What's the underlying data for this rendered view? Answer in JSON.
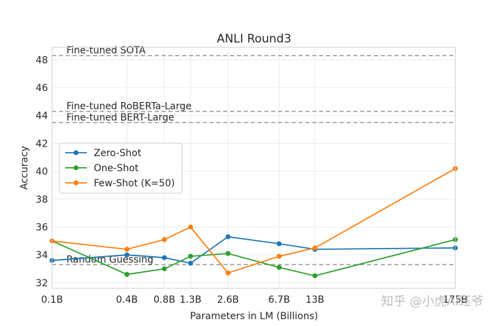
{
  "chart_data": {
    "type": "line",
    "title": "ANLI Round3",
    "xlabel": "Parameters in LM (Billions)",
    "ylabel": "Accuracy",
    "ylim": [
      31.6,
      48.9
    ],
    "yticks": [
      32,
      34,
      36,
      38,
      40,
      42,
      44,
      46,
      48
    ],
    "grid": true,
    "legend_position": "center-left",
    "categories": [
      "0.1B",
      "0.4B",
      "0.8B",
      "1.3B",
      "2.6B",
      "6.7B",
      "13B",
      "175B"
    ],
    "x": [
      0.1,
      0.4,
      0.8,
      1.3,
      2.6,
      6.7,
      13,
      175
    ],
    "series": [
      {
        "name": "Zero-Shot",
        "color": "#1f77b4",
        "values": [
          33.6,
          34.0,
          33.8,
          33.4,
          35.3,
          34.8,
          34.4,
          34.5
        ]
      },
      {
        "name": "One-Shot",
        "color": "#2ca02c",
        "values": [
          35.0,
          32.6,
          33.0,
          33.9,
          34.1,
          33.1,
          32.5,
          35.1
        ]
      },
      {
        "name": "Few-Shot (K=50)",
        "color": "#ff7f0e",
        "values": [
          35.0,
          34.4,
          35.1,
          36.0,
          32.7,
          33.9,
          34.5,
          40.2
        ]
      }
    ],
    "reference_lines": [
      {
        "label": "Fine-tuned SOTA",
        "value": 48.3
      },
      {
        "label": "Fine-tuned RoBERTa-Large",
        "value": 44.3
      },
      {
        "label": "Fine-tuned BERT-Large",
        "value": 43.5
      },
      {
        "label": "Random Guessing",
        "value": 33.3
      }
    ]
  },
  "watermark": "知乎 @小虎AI珏爷"
}
